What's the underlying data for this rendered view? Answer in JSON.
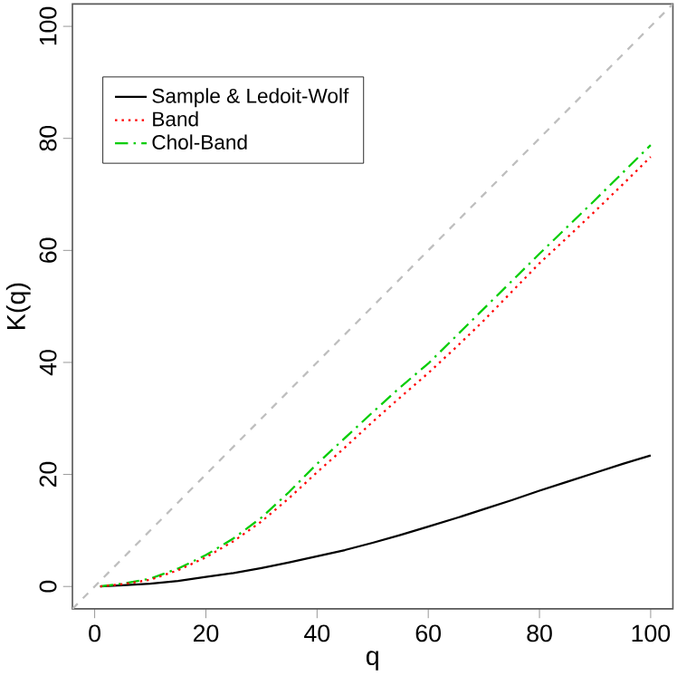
{
  "chart_data": {
    "type": "line",
    "xlabel": "q",
    "ylabel": "K(q)",
    "xlim": [
      -4,
      104
    ],
    "ylim": [
      -4,
      104
    ],
    "xticks": [
      0,
      20,
      40,
      60,
      80,
      100
    ],
    "yticks": [
      0,
      20,
      40,
      60,
      80,
      100
    ],
    "grid": false,
    "legend": "top left",
    "series": [
      {
        "name": "Sample & Ledoit-Wolf",
        "color": "#000000",
        "line_style": "solid",
        "x": [
          1,
          5,
          10,
          15,
          20,
          25,
          30,
          35,
          40,
          45,
          50,
          55,
          60,
          65,
          70,
          75,
          80,
          85,
          90,
          95,
          100
        ],
        "values": [
          0,
          0.2,
          0.5,
          1.0,
          1.7,
          2.4,
          3.3,
          4.3,
          5.4,
          6.5,
          7.8,
          9.2,
          10.7,
          12.2,
          13.8,
          15.4,
          17.1,
          18.7,
          20.3,
          21.9,
          23.4
        ]
      },
      {
        "name": "Band",
        "color": "#ff0000",
        "line_style": "dotted",
        "x": [
          1,
          5,
          10,
          15,
          20,
          25,
          30,
          35,
          40,
          45,
          50,
          55,
          60,
          65,
          70,
          75,
          80,
          85,
          90,
          95,
          100
        ],
        "values": [
          0,
          0.4,
          1.2,
          2.9,
          5.2,
          8.1,
          11.6,
          15.8,
          20.4,
          24.8,
          29.4,
          33.8,
          38.1,
          42.7,
          47.5,
          52.6,
          57.7,
          62.3,
          67.0,
          71.8,
          76.7
        ]
      },
      {
        "name": "Chol-Band",
        "color": "#00cd00",
        "line_style": "dashdot",
        "x": [
          1,
          5,
          10,
          15,
          20,
          25,
          30,
          35,
          40,
          45,
          50,
          55,
          60,
          65,
          70,
          75,
          80,
          85,
          90,
          95,
          100
        ],
        "values": [
          0,
          0.5,
          1.4,
          3.2,
          5.6,
          8.6,
          12.3,
          16.9,
          21.9,
          26.5,
          31.1,
          35.6,
          39.8,
          44.7,
          49.6,
          54.5,
          59.4,
          64.2,
          69.0,
          73.9,
          78.8
        ]
      },
      {
        "color": "#bebebe",
        "line_style": "dashed",
        "x": [
          -4,
          104
        ],
        "values": [
          -4,
          104
        ]
      }
    ]
  }
}
